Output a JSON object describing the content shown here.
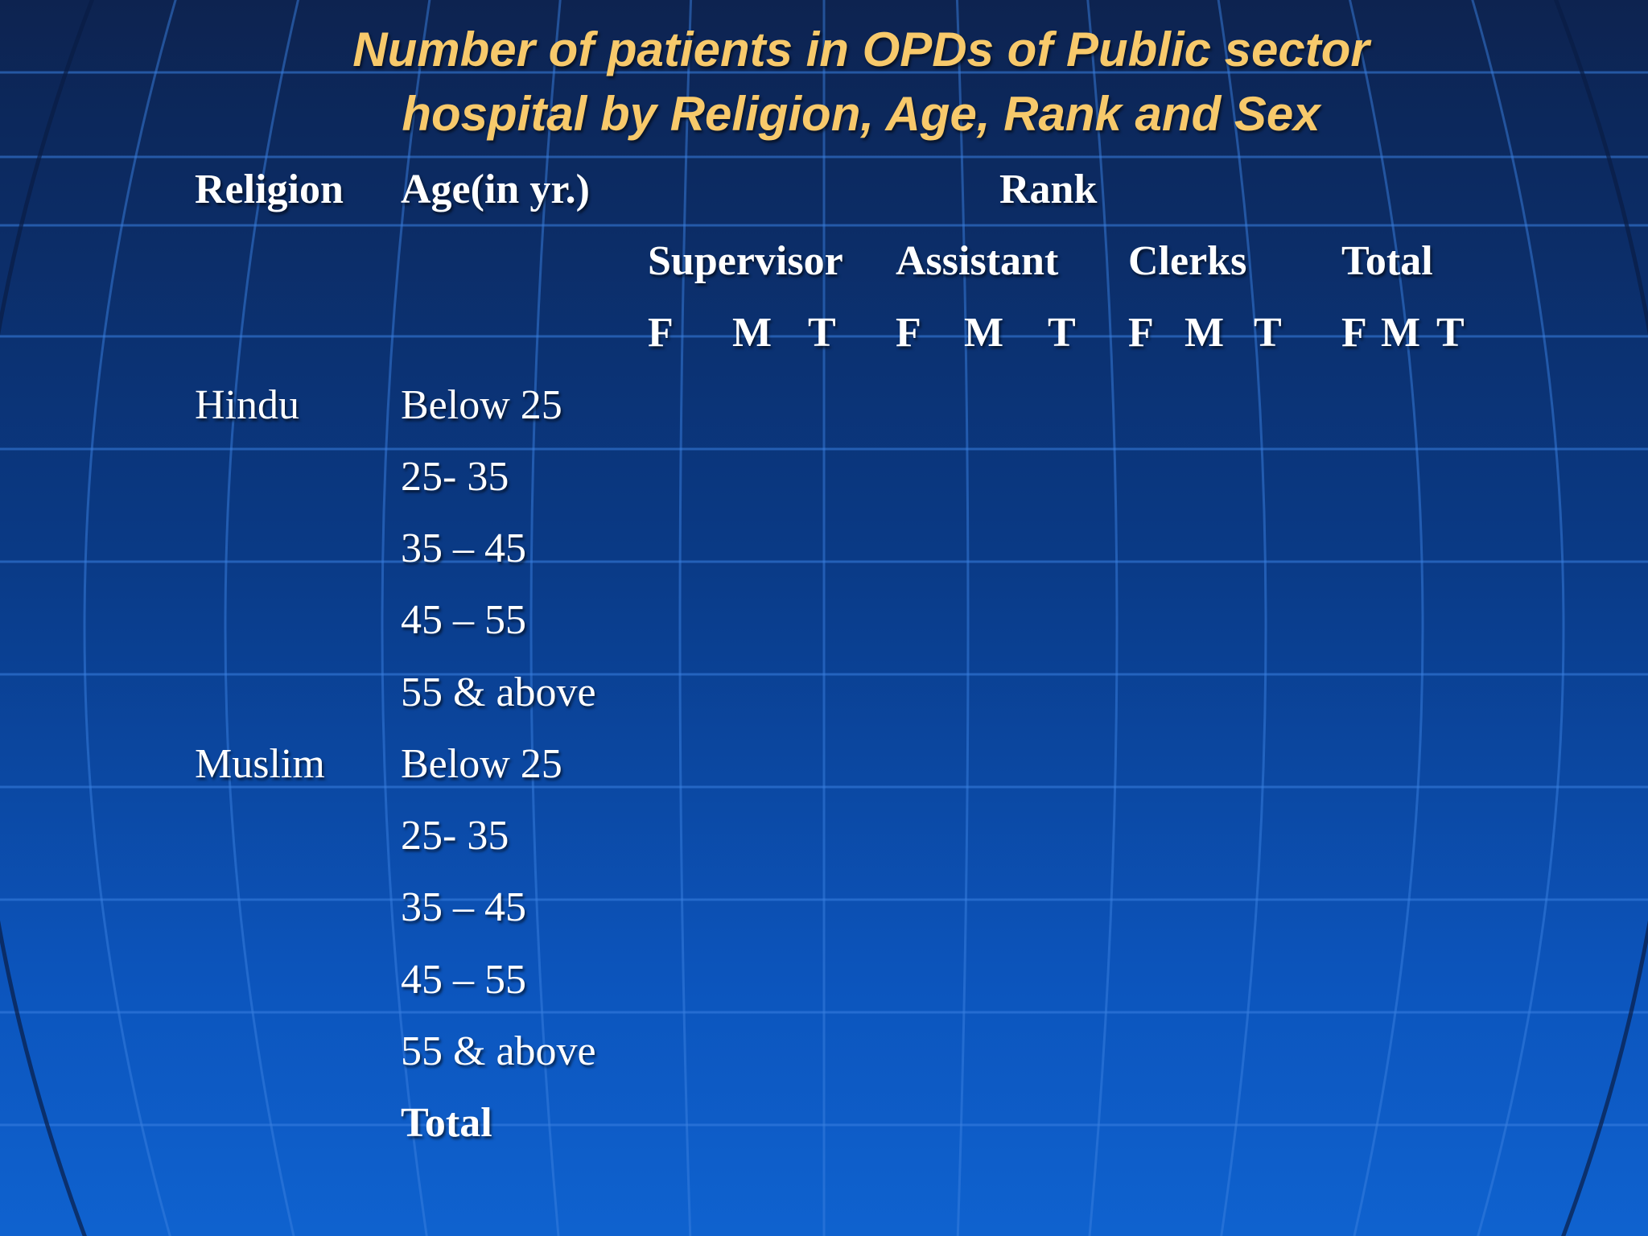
{
  "title_line1": "Number of patients in OPDs of Public sector",
  "title_line2": "hospital by  Religion, Age, Rank and Sex",
  "headers": {
    "religion": "Religion",
    "age": "Age(in yr.)",
    "rank": "Rank"
  },
  "rank_groups": [
    "Supervisor",
    "Assistant",
    "Clerks",
    "Total"
  ],
  "sex_labels": [
    "F",
    "M",
    "T",
    "F",
    "M",
    "T",
    "F",
    "M",
    "T",
    "F",
    "M",
    "T"
  ],
  "religions": [
    "Hindu",
    "Muslim"
  ],
  "age_groups": [
    "Below 25",
    "25- 35",
    "35 – 45",
    "45 – 55",
    "55 & above",
    "Below 25",
    "25- 35",
    "35 – 45",
    "45 – 55",
    "55 & above"
  ],
  "total_label": "Total",
  "colors": {
    "title": "#f7c96b",
    "text": "#ffffff",
    "background_top": "#0d2350",
    "background_bottom": "#0f62cf"
  }
}
